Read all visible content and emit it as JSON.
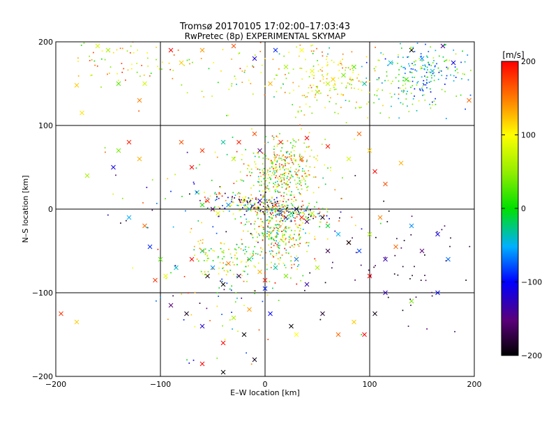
{
  "chart_data": {
    "type": "scatter",
    "title_line1": "Tromsø 20170105 17:02:00–17:03:43",
    "title_line2": "RwPretec (8p) EXPERIMENTAL SKYMAP",
    "xlabel": "E–W location [km]",
    "ylabel": "N–S location [km]",
    "xlim": [
      -200,
      200
    ],
    "ylim": [
      -200,
      200
    ],
    "x_ticks": [
      -200,
      -100,
      0,
      100,
      200
    ],
    "y_ticks": [
      -200,
      -100,
      0,
      100,
      200
    ],
    "x_tick_labels": [
      "−200",
      "−100",
      "0",
      "100",
      "200"
    ],
    "y_tick_labels": [
      "−200",
      "−100",
      "0",
      "100",
      "200"
    ],
    "grid": true,
    "colorbar": {
      "label": "[m/s]",
      "min": -200,
      "max": 200,
      "ticks": [
        200,
        100,
        0,
        -100,
        -200
      ],
      "tick_labels": [
        "200",
        "100",
        "0",
        "−100",
        "−200"
      ],
      "colormap": "black-purple-blue-cyan-green-yellow-orange-red"
    },
    "series": [
      {
        "marker": "x",
        "points": [
          [
            -175,
            115,
            110
          ],
          [
            -180,
            148,
            120
          ],
          [
            -160,
            195,
            80
          ],
          [
            -150,
            190,
            60
          ],
          [
            -140,
            150,
            30
          ],
          [
            -120,
            130,
            150
          ],
          [
            -90,
            190,
            200
          ],
          [
            -80,
            175,
            120
          ],
          [
            -60,
            190,
            140
          ],
          [
            -30,
            195,
            170
          ],
          [
            -10,
            180,
            -120
          ],
          [
            10,
            190,
            -90
          ],
          [
            20,
            170,
            60
          ],
          [
            35,
            190,
            100
          ],
          [
            45,
            165,
            90
          ],
          [
            50,
            140,
            60
          ],
          [
            60,
            150,
            70
          ],
          [
            65,
            155,
            120
          ],
          [
            75,
            160,
            40
          ],
          [
            85,
            170,
            30
          ],
          [
            95,
            150,
            -30
          ],
          [
            120,
            175,
            -40
          ],
          [
            135,
            155,
            20
          ],
          [
            150,
            180,
            -60
          ],
          [
            160,
            165,
            -50
          ],
          [
            170,
            195,
            -140
          ],
          [
            180,
            175,
            -110
          ],
          [
            195,
            130,
            160
          ],
          [
            140,
            190,
            -200
          ],
          [
            -115,
            150,
            80
          ],
          [
            5,
            150,
            130
          ],
          [
            -130,
            80,
            190
          ],
          [
            -140,
            70,
            40
          ],
          [
            -145,
            50,
            -110
          ],
          [
            -120,
            60,
            130
          ],
          [
            -170,
            40,
            60
          ],
          [
            -80,
            80,
            170
          ],
          [
            -70,
            50,
            210
          ],
          [
            -60,
            70,
            180
          ],
          [
            -40,
            80,
            -30
          ],
          [
            -30,
            60,
            70
          ],
          [
            -25,
            80,
            190
          ],
          [
            -10,
            90,
            170
          ],
          [
            -5,
            70,
            -150
          ],
          [
            15,
            80,
            190
          ],
          [
            35,
            60,
            160
          ],
          [
            40,
            85,
            200
          ],
          [
            60,
            75,
            190
          ],
          [
            80,
            60,
            80
          ],
          [
            90,
            90,
            160
          ],
          [
            100,
            70,
            120
          ],
          [
            105,
            45,
            200
          ],
          [
            115,
            30,
            170
          ],
          [
            130,
            55,
            130
          ],
          [
            -65,
            20,
            -40
          ],
          [
            -60,
            5,
            10
          ],
          [
            -55,
            10,
            180
          ],
          [
            -50,
            0,
            -160
          ],
          [
            -45,
            -5,
            90
          ],
          [
            -35,
            5,
            -60
          ],
          [
            -20,
            12,
            100
          ],
          [
            -15,
            0,
            -30
          ],
          [
            -5,
            10,
            -120
          ],
          [
            5,
            0,
            130
          ],
          [
            10,
            5,
            190
          ],
          [
            15,
            -5,
            -80
          ],
          [
            20,
            -10,
            -130
          ],
          [
            25,
            -5,
            -20
          ],
          [
            30,
            0,
            -200
          ],
          [
            35,
            -10,
            200
          ],
          [
            40,
            -15,
            -160
          ],
          [
            45,
            -5,
            70
          ],
          [
            55,
            -10,
            -190
          ],
          [
            60,
            -20,
            -10
          ],
          [
            70,
            -30,
            -50
          ],
          [
            80,
            -40,
            200
          ],
          [
            90,
            -50,
            -80
          ],
          [
            100,
            -30,
            60
          ],
          [
            110,
            -10,
            150
          ],
          [
            -115,
            -20,
            160
          ],
          [
            -110,
            -45,
            -90
          ],
          [
            -100,
            -60,
            30
          ],
          [
            -95,
            -80,
            90
          ],
          [
            -85,
            -70,
            -40
          ],
          [
            -70,
            -60,
            200
          ],
          [
            -60,
            -50,
            -20
          ],
          [
            -55,
            -80,
            -190
          ],
          [
            -50,
            -70,
            -60
          ],
          [
            -40,
            -90,
            -200
          ],
          [
            -35,
            -65,
            150
          ],
          [
            -25,
            -80,
            -170
          ],
          [
            -15,
            -60,
            -10
          ],
          [
            -5,
            -75,
            130
          ],
          [
            0,
            -85,
            190
          ],
          [
            10,
            -70,
            -30
          ],
          [
            20,
            -80,
            40
          ],
          [
            30,
            -60,
            -70
          ],
          [
            40,
            -90,
            -130
          ],
          [
            50,
            -70,
            60
          ],
          [
            60,
            -50,
            -170
          ],
          [
            80,
            -40,
            -200
          ],
          [
            100,
            -80,
            200
          ],
          [
            115,
            -60,
            -130
          ],
          [
            125,
            -45,
            160
          ],
          [
            140,
            -20,
            -60
          ],
          [
            150,
            -50,
            -150
          ],
          [
            165,
            -30,
            -110
          ],
          [
            175,
            -60,
            -70
          ],
          [
            -195,
            -125,
            180
          ],
          [
            -180,
            -135,
            120
          ],
          [
            -90,
            -115,
            -150
          ],
          [
            -75,
            -125,
            -190
          ],
          [
            -60,
            -140,
            -120
          ],
          [
            -40,
            -160,
            200
          ],
          [
            -30,
            -130,
            60
          ],
          [
            -20,
            -150,
            -200
          ],
          [
            -15,
            -120,
            140
          ],
          [
            -10,
            -180,
            -190
          ],
          [
            5,
            -125,
            -100
          ],
          [
            30,
            -150,
            100
          ],
          [
            55,
            -125,
            -180
          ],
          [
            70,
            -150,
            160
          ],
          [
            85,
            -135,
            120
          ],
          [
            95,
            -150,
            200
          ],
          [
            105,
            -125,
            -190
          ],
          [
            115,
            -100,
            -130
          ],
          [
            140,
            -110,
            40
          ],
          [
            165,
            -100,
            -100
          ],
          [
            -105,
            -85,
            180
          ],
          [
            -130,
            -10,
            -50
          ],
          [
            -40,
            -195,
            -200
          ],
          [
            0,
            -95,
            -90
          ],
          [
            -60,
            -185,
            200
          ],
          [
            25,
            -140,
            -200
          ]
        ]
      },
      {
        "marker": "dot",
        "clusters": [
          {
            "cx": 15,
            "cy": 45,
            "sx": 18,
            "sy": 20,
            "n": 380,
            "vmin": -40,
            "vmax": 200
          },
          {
            "cx": 10,
            "cy": -30,
            "sx": 18,
            "sy": 20,
            "n": 330,
            "vmin": -60,
            "vmax": 200
          },
          {
            "cx": 5,
            "cy": 3,
            "sx": 30,
            "sy": 6,
            "n": 260,
            "vmin": -200,
            "vmax": 200
          },
          {
            "cx": -40,
            "cy": -60,
            "sx": 15,
            "sy": 12,
            "n": 90,
            "vmin": -30,
            "vmax": 150
          },
          {
            "cx": 150,
            "cy": 160,
            "sx": 22,
            "sy": 20,
            "n": 220,
            "vmin": -100,
            "vmax": 80
          },
          {
            "cx": 65,
            "cy": 150,
            "sx": 30,
            "sy": 25,
            "n": 170,
            "vmin": 20,
            "vmax": 170
          },
          {
            "cx": -30,
            "cy": 165,
            "sx": 60,
            "sy": 20,
            "n": 90,
            "vmin": -40,
            "vmax": 200
          },
          {
            "cx": -150,
            "cy": 175,
            "sx": 25,
            "sy": 15,
            "n": 50,
            "vmin": 30,
            "vmax": 180
          },
          {
            "cx": 120,
            "cy": -60,
            "sx": 45,
            "sy": 40,
            "n": 60,
            "vmin": -200,
            "vmax": -150
          },
          {
            "cx": -40,
            "cy": -120,
            "sx": 40,
            "sy": 30,
            "n": 60,
            "vmin": -200,
            "vmax": 200
          },
          {
            "cx": -70,
            "cy": 10,
            "sx": 40,
            "sy": 30,
            "n": 60,
            "vmin": -200,
            "vmax": 200
          }
        ]
      }
    ]
  }
}
